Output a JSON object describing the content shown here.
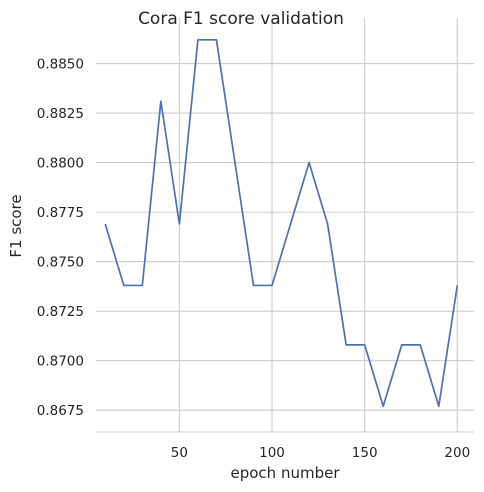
{
  "chart_data": {
    "type": "line",
    "title": "Cora F1 score validation",
    "xlabel": "epoch number",
    "ylabel": "F1 score",
    "xlim": [
      5,
      209
    ],
    "ylim": [
      0.8664,
      0.8873
    ],
    "xticks": [
      50,
      100,
      150,
      200
    ],
    "yticks": [
      0.8675,
      0.87,
      0.8725,
      0.875,
      0.8775,
      0.88,
      0.8825,
      0.885
    ],
    "ytick_labels": [
      "0.8675",
      "0.8700",
      "0.8725",
      "0.8750",
      "0.8775",
      "0.8800",
      "0.8825",
      "0.8850"
    ],
    "grid": true,
    "series": [
      {
        "color": "#4c72b0",
        "x": [
          10,
          20,
          30,
          40,
          50,
          60,
          70,
          80,
          90,
          100,
          110,
          120,
          130,
          140,
          150,
          160,
          170,
          180,
          190,
          200
        ],
        "y": [
          0.8769,
          0.8738,
          0.8738,
          0.8831,
          0.8769,
          0.8862,
          0.8862,
          0.88,
          0.8738,
          0.8738,
          0.8769,
          0.88,
          0.8769,
          0.8708,
          0.8708,
          0.8677,
          0.8708,
          0.8708,
          0.8677,
          0.8738
        ]
      }
    ]
  }
}
